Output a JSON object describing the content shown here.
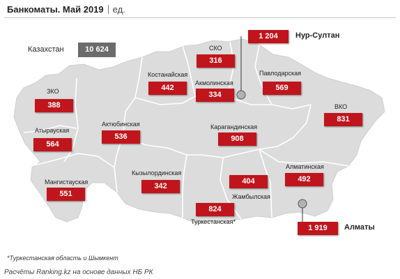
{
  "header": {
    "title": "Банкоматы. Май 2019",
    "unit": "ед."
  },
  "country": {
    "label": "Казахстан",
    "value": "10 624"
  },
  "regions": [
    {
      "name": "СКО",
      "value": "316"
    },
    {
      "name": "Костанайская",
      "value": "442"
    },
    {
      "name": "Акмолинская",
      "value": "334"
    },
    {
      "name": "Павлодарская",
      "value": "569"
    },
    {
      "name": "ЗКО",
      "value": "388"
    },
    {
      "name": "Атырауская",
      "value": "564"
    },
    {
      "name": "Актюбинская",
      "value": "536"
    },
    {
      "name": "Карагандинская",
      "value": "908"
    },
    {
      "name": "ВКО",
      "value": "831"
    },
    {
      "name": "Мангистауская",
      "value": "551"
    },
    {
      "name": "Кызылординская",
      "value": "342"
    },
    {
      "name": "Жамбылская",
      "value": "404"
    },
    {
      "name": "Алматинская",
      "value": "492"
    },
    {
      "name": "Туркестанская*",
      "value": "824"
    }
  ],
  "cities": [
    {
      "name": "Нур-Султан",
      "value": "1 204"
    },
    {
      "name": "Алматы",
      "value": "1 919"
    }
  ],
  "footnote": "*Туркестанская область и Шымкент",
  "source": "Расчёты Ranking.kz на основе данных НБ РК",
  "colors": {
    "value_box": "#c0151c",
    "total_box": "#6b6b6b",
    "map_fill": "#dcdcdc",
    "border": "#ffffff"
  }
}
